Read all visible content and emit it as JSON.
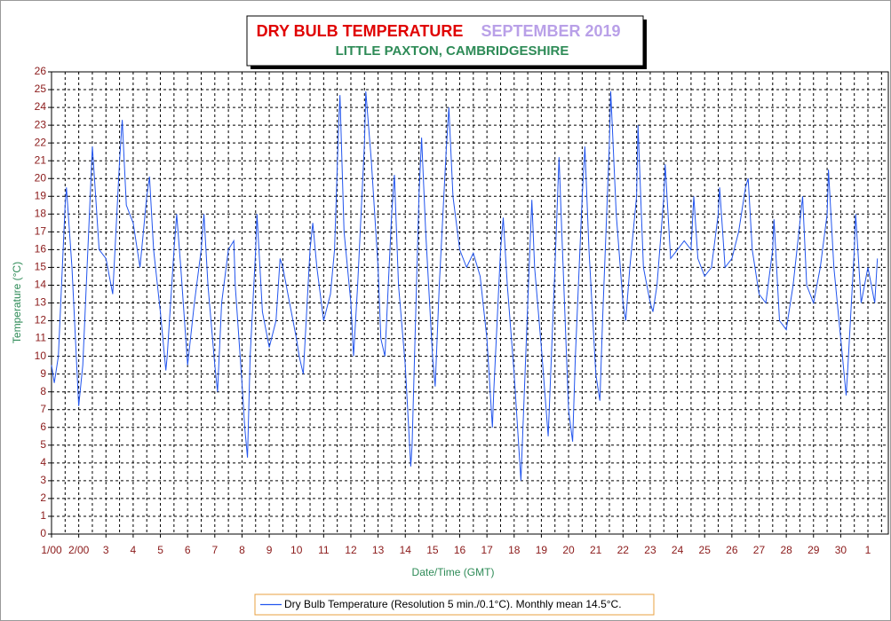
{
  "chart_data": {
    "type": "line",
    "title": "DRY BULB TEMPERATURE",
    "title_color": "#e00000",
    "title_date": "SEPTEMBER 2019",
    "title_date_color": "#b9a0e8",
    "subtitle": "LITTLE PAXTON, CAMBRIDGESHIRE",
    "subtitle_color": "#2e8b57",
    "x_label": "Date/Time (GMT)",
    "y_label": "Temperature (°C)",
    "x": [
      0,
      0.1,
      0.25,
      0.5,
      0.55,
      0.75,
      1.0,
      1.15,
      1.5,
      1.75,
      2.0,
      2.25,
      2.5,
      2.6,
      2.75,
      3.0,
      3.25,
      3.5,
      3.6,
      3.75,
      4.0,
      4.2,
      4.25,
      4.5,
      4.6,
      4.75,
      5.0,
      5.25,
      5.5,
      5.6,
      5.75,
      6.0,
      6.1,
      6.25,
      6.5,
      6.7,
      6.75,
      7.0,
      7.1,
      7.2,
      7.3,
      7.5,
      7.55,
      7.75,
      8.0,
      8.25,
      8.4,
      8.5,
      8.75,
      9.0,
      9.1,
      9.25,
      9.5,
      9.6,
      9.75,
      10.0,
      10.25,
      10.4,
      10.55,
      10.6,
      10.75,
      11.0,
      11.1,
      11.25,
      11.5,
      11.55,
      11.75,
      12.0,
      12.1,
      12.25,
      12.5,
      12.6,
      12.75,
      13.0,
      13.2,
      13.25,
      13.5,
      13.6,
      13.75,
      14.0,
      14.1,
      14.25,
      14.5,
      14.6,
      14.75,
      15.0,
      15.25,
      15.5,
      15.75,
      16.0,
      16.2,
      16.25,
      16.5,
      16.6,
      16.75,
      17.0,
      17.25,
      17.5,
      17.65,
      17.75,
      18.0,
      18.25,
      18.5,
      18.65,
      18.75,
      19.0,
      19.15,
      19.25,
      19.5,
      19.6,
      19.75,
      20.0,
      20.15,
      20.25,
      20.5,
      20.55,
      20.75,
      21.0,
      21.1,
      21.25,
      21.5,
      21.55,
      21.75,
      22.0,
      22.1,
      22.25,
      22.5,
      22.55,
      22.75,
      23.0,
      23.25,
      23.5,
      23.6,
      23.75,
      24.0,
      24.25,
      24.5,
      24.55,
      24.75,
      25.0,
      25.25,
      25.5,
      25.6,
      25.75,
      26.0,
      26.25,
      26.5,
      26.55,
      26.75,
      27.0,
      27.25,
      27.5,
      27.6,
      27.75,
      28.0,
      28.25,
      28.5,
      28.55,
      28.75,
      29.0,
      29.2,
      29.25,
      29.5,
      29.55,
      29.75,
      30.0,
      30.25,
      30.35
    ],
    "series": [
      {
        "name": "Dry Bulb Temperature (Resolution 5 min./0.1°C). Monthly mean 14.5°C.",
        "color": "#2255ee",
        "values": [
          9.5,
          8.5,
          10,
          18.5,
          19.5,
          15,
          7.2,
          9.5,
          21.8,
          16,
          15.5,
          13.5,
          21,
          23.3,
          18.5,
          17.5,
          15,
          19,
          20.1,
          16,
          12.5,
          9.2,
          10,
          16,
          18,
          15,
          9.5,
          13,
          16,
          18,
          14,
          9.5,
          8,
          13,
          16,
          16.5,
          14,
          8.5,
          6,
          4.3,
          10,
          16,
          18,
          12.5,
          10.5,
          12,
          15.5,
          15,
          13,
          11,
          10,
          9,
          16,
          17.5,
          15,
          12,
          13.5,
          16,
          23,
          24.7,
          17,
          13,
          10,
          14,
          22,
          24.9,
          21,
          15,
          11,
          10,
          18,
          20.2,
          14,
          9.5,
          3.8,
          5,
          19,
          22.3,
          17,
          10,
          8.3,
          14,
          21.5,
          24,
          19,
          16,
          15,
          15.8,
          14.5,
          11,
          6,
          8,
          16,
          17.8,
          14,
          9,
          3,
          13,
          18.8,
          15,
          10.5,
          5.5,
          15,
          21.2,
          17,
          7,
          5.2,
          10,
          19,
          21.8,
          16,
          9,
          7.5,
          12,
          22,
          24.9,
          18,
          13,
          12,
          15,
          19,
          23,
          15,
          13,
          12.5,
          14,
          19,
          20.8,
          15.5,
          16,
          16.5,
          16,
          19,
          15.5,
          14.5,
          15,
          18,
          19.5,
          15,
          15.5,
          17,
          19.5,
          20,
          16,
          13.5,
          13,
          16,
          17.7,
          12,
          11.5,
          14,
          17.5,
          19,
          14,
          13,
          15,
          18,
          20.5,
          15,
          11,
          7.8,
          9,
          16,
          18,
          13,
          15,
          13,
          15.5
        ]
      }
    ],
    "xlim": [
      0,
      30.75
    ],
    "ylim": [
      0,
      26
    ],
    "xticks": [
      {
        "value": 0,
        "label": "1/00"
      },
      {
        "value": 1,
        "label": "2/00"
      },
      {
        "value": 2,
        "label": "3"
      },
      {
        "value": 3,
        "label": "4"
      },
      {
        "value": 4,
        "label": "5"
      },
      {
        "value": 5,
        "label": "6"
      },
      {
        "value": 6,
        "label": "7"
      },
      {
        "value": 7,
        "label": "8"
      },
      {
        "value": 8,
        "label": "9"
      },
      {
        "value": 9,
        "label": "10"
      },
      {
        "value": 10,
        "label": "11"
      },
      {
        "value": 11,
        "label": "12"
      },
      {
        "value": 12,
        "label": "13"
      },
      {
        "value": 13,
        "label": "14"
      },
      {
        "value": 14,
        "label": "15"
      },
      {
        "value": 15,
        "label": "16"
      },
      {
        "value": 16,
        "label": "17"
      },
      {
        "value": 17,
        "label": "18"
      },
      {
        "value": 18,
        "label": "19"
      },
      {
        "value": 19,
        "label": "20"
      },
      {
        "value": 20,
        "label": "21"
      },
      {
        "value": 21,
        "label": "22"
      },
      {
        "value": 22,
        "label": "23"
      },
      {
        "value": 23,
        "label": "24"
      },
      {
        "value": 24,
        "label": "25"
      },
      {
        "value": 25,
        "label": "26"
      },
      {
        "value": 26,
        "label": "27"
      },
      {
        "value": 27,
        "label": "28"
      },
      {
        "value": 28,
        "label": "29"
      },
      {
        "value": 29,
        "label": "30"
      },
      {
        "value": 30,
        "label": "1"
      }
    ],
    "xgrid_minor": [
      0.5,
      1.5,
      2.5,
      3.5,
      4.5,
      5.5,
      6.5,
      7.5,
      8.5,
      9.5,
      10.5,
      11.5,
      12.5,
      13.5,
      14.5,
      15.5,
      16.5,
      17.5,
      18.5,
      19.5,
      20.5,
      21.5,
      22.5,
      23.5,
      24.5,
      25.5,
      26.5,
      27.5,
      28.5,
      29.5,
      30.5
    ],
    "yticks": [
      0,
      1,
      2,
      3,
      4,
      5,
      6,
      7,
      8,
      9,
      10,
      11,
      12,
      13,
      14,
      15,
      16,
      17,
      18,
      19,
      20,
      21,
      22,
      23,
      24,
      25,
      26
    ],
    "grid": true,
    "tick_color": "#8b1a1a",
    "axis_label_color": "#2e8b57",
    "legend_border_color": "#e8a040"
  }
}
